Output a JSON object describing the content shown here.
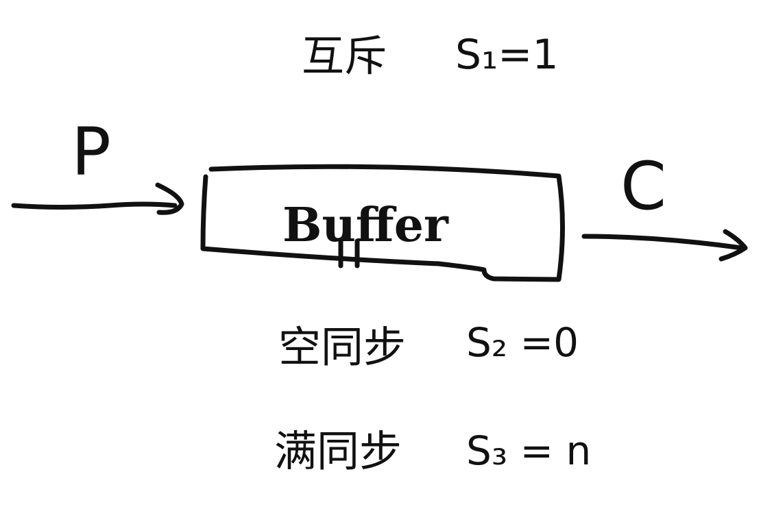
{
  "diagram": {
    "mutex_label": "互斥",
    "mutex_eq": "S₁=1",
    "producer": "P",
    "buffer": "Buffer",
    "consumer": "C",
    "empty_label": "空同步",
    "empty_eq": "S₂ =0",
    "full_label": "满同步",
    "full_eq": "S₃ = n"
  }
}
